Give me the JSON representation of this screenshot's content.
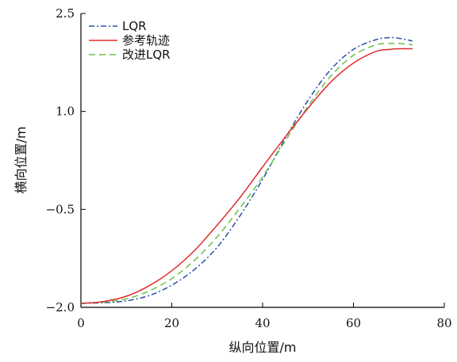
{
  "chart_data": {
    "type": "line",
    "xlabel": "纵向位置/m",
    "ylabel": "横向位置/m",
    "xlim": [
      0,
      80
    ],
    "ylim": [
      -2.0,
      2.5
    ],
    "x_ticks": [
      "0",
      "20",
      "40",
      "60",
      "80"
    ],
    "y_ticks": [
      "−2.0",
      "−0.5",
      "1.0",
      "2.5"
    ],
    "x_tick_values": [
      0,
      20,
      40,
      60,
      80
    ],
    "y_tick_values": [
      -2.0,
      -0.5,
      1.0,
      2.5
    ],
    "grid": false,
    "legend_position": "top-left",
    "x": [
      0,
      5,
      10,
      15,
      20,
      25,
      30,
      35,
      40,
      45,
      50,
      55,
      60,
      65,
      68,
      70,
      73
    ],
    "series": [
      {
        "name": "LQR",
        "color": "#2a4fa8",
        "dash": "dashdot",
        "values": [
          -1.94,
          -1.93,
          -1.9,
          -1.82,
          -1.66,
          -1.42,
          -1.08,
          -0.6,
          -0.04,
          0.59,
          1.17,
          1.64,
          1.95,
          2.1,
          2.13,
          2.12,
          2.08
        ]
      },
      {
        "name": "参考轨迹",
        "color": "#e02b2b",
        "dash": "solid",
        "values": [
          -1.94,
          -1.91,
          -1.83,
          -1.67,
          -1.44,
          -1.13,
          -0.74,
          -0.32,
          0.15,
          0.61,
          1.05,
          1.45,
          1.74,
          1.92,
          1.95,
          1.96,
          1.96
        ]
      },
      {
        "name": "改进LQR",
        "color": "#6cc24a",
        "dash": "dashed",
        "values": [
          -1.94,
          -1.92,
          -1.87,
          -1.75,
          -1.56,
          -1.28,
          -0.92,
          -0.48,
          0.0,
          0.55,
          1.08,
          1.54,
          1.86,
          2.02,
          2.04,
          2.04,
          2.02
        ]
      }
    ]
  }
}
